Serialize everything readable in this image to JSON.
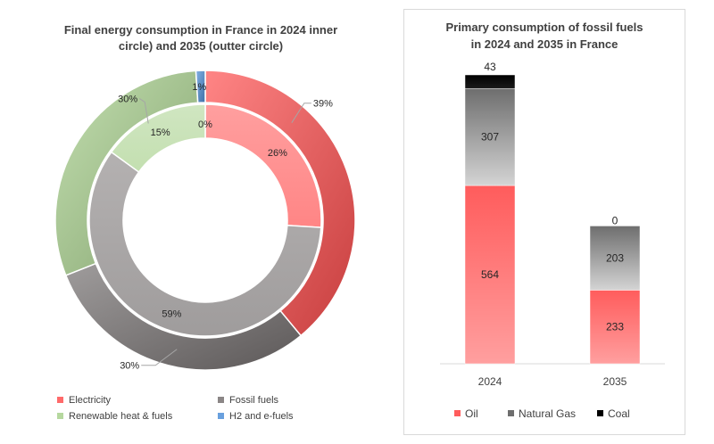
{
  "chart_data": [
    {
      "type": "pie",
      "variant": "donut-two-rings",
      "title": "Final energy consumption in France in 2024 inner circle) and 2035 (outter circle)",
      "title_lines": [
        "Final energy consumption in France in 2024 inner",
        "circle) and 2035 (outter circle)"
      ],
      "categories": [
        "Electricity",
        "Fossil fuels",
        "Renewable heat & fuels",
        "H2 and e-fuels"
      ],
      "series": [
        {
          "name": "2024",
          "ring": "inner",
          "values": [
            26,
            59,
            15,
            0
          ],
          "labels": [
            "26%",
            "59%",
            "15%",
            "0%"
          ]
        },
        {
          "name": "2035",
          "ring": "outer",
          "values": [
            39,
            30,
            30,
            1
          ],
          "labels": [
            "39%",
            "30%",
            "30%",
            "1%"
          ]
        }
      ],
      "colors": [
        "#ff5050",
        "#767171",
        "#a9d18e",
        "#4f8fd8"
      ],
      "legend_position": "bottom"
    },
    {
      "type": "bar",
      "variant": "stacked",
      "title": "Primary consumption of fossil fuels in 2024 and 2035 in France",
      "title_lines": [
        "Primary consumption of fossil fuels",
        "in 2024 and 2035 in France"
      ],
      "categories": [
        "2024",
        "2035"
      ],
      "series": [
        {
          "name": "Oil",
          "values": [
            564,
            233
          ]
        },
        {
          "name": "Natural Gas",
          "values": [
            307,
            203
          ]
        },
        {
          "name": "Coal",
          "values": [
            43,
            0
          ]
        }
      ],
      "colors": [
        "#ff6b6b",
        "#9e9e9e",
        "#111111"
      ],
      "ylim": [
        0,
        950
      ],
      "legend_position": "bottom"
    }
  ]
}
